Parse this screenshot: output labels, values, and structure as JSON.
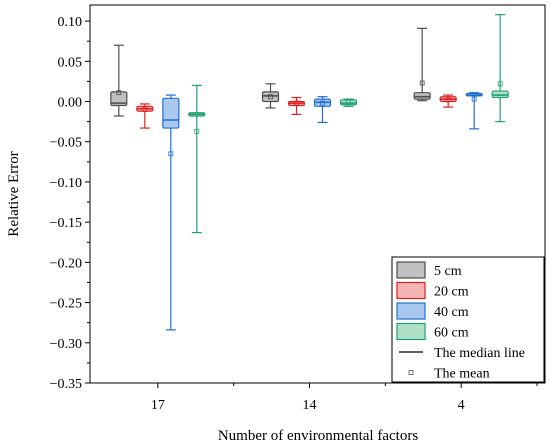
{
  "chart_data": {
    "type": "box",
    "xlabel": "Number of environmental factors",
    "ylabel": "Relative Error",
    "ylim": [
      -0.35,
      0.12
    ],
    "yticks": [
      0.1,
      0.05,
      0.0,
      -0.05,
      -0.1,
      -0.15,
      -0.2,
      -0.25,
      -0.3,
      -0.35
    ],
    "ytick_labels": [
      "0.10",
      "0.05",
      "0.00",
      "−0.05",
      "−0.10",
      "−0.15",
      "−0.20",
      "−0.25",
      "−0.30",
      "−0.35"
    ],
    "categories": [
      "17",
      "14",
      "4"
    ],
    "series": [
      {
        "name": "5   cm",
        "color": "#4d4d4d",
        "fill": "#c0c0c0",
        "boxes": [
          {
            "min": -0.018,
            "q1": -0.005,
            "median": -0.002,
            "q3": 0.012,
            "max": 0.07,
            "mean": 0.011
          },
          {
            "min": -0.008,
            "q1": 0.0,
            "median": 0.007,
            "q3": 0.012,
            "max": 0.022,
            "mean": 0.006
          },
          {
            "min": 0.001,
            "q1": 0.003,
            "median": 0.006,
            "q3": 0.011,
            "max": 0.091,
            "mean": 0.023
          }
        ]
      },
      {
        "name": "20 cm",
        "color": "#e02020",
        "fill": "#f5b5b5",
        "boxes": [
          {
            "min": -0.033,
            "q1": -0.012,
            "median": -0.009,
            "q3": -0.006,
            "max": -0.003,
            "mean": -0.01
          },
          {
            "min": -0.016,
            "q1": -0.005,
            "median": -0.002,
            "q3": 0.0,
            "max": 0.005,
            "mean": -0.002
          },
          {
            "min": -0.007,
            "q1": 0.0,
            "median": 0.003,
            "q3": 0.006,
            "max": 0.008,
            "mean": 0.002
          }
        ]
      },
      {
        "name": "40 cm",
        "color": "#2070d0",
        "fill": "#a8c8f0",
        "boxes": [
          {
            "min": -0.284,
            "q1": -0.033,
            "median": -0.023,
            "q3": 0.004,
            "max": 0.008,
            "mean": -0.065
          },
          {
            "min": -0.026,
            "q1": -0.006,
            "median": -0.001,
            "q3": 0.003,
            "max": 0.006,
            "mean": -0.002
          },
          {
            "min": -0.034,
            "q1": 0.007,
            "median": 0.008,
            "q3": 0.01,
            "max": 0.011,
            "mean": 0.003
          }
        ]
      },
      {
        "name": "60 cm",
        "color": "#20a070",
        "fill": "#b0e0c8",
        "boxes": [
          {
            "min": -0.163,
            "q1": -0.018,
            "median": -0.016,
            "q3": -0.014,
            "max": 0.02,
            "mean": -0.037
          },
          {
            "min": -0.006,
            "q1": -0.004,
            "median": -0.002,
            "q3": 0.002,
            "max": 0.003,
            "mean": -0.001
          },
          {
            "min": -0.025,
            "q1": 0.005,
            "median": 0.008,
            "q3": 0.013,
            "max": 0.108,
            "mean": 0.022
          }
        ]
      }
    ],
    "legend": {
      "position": "bottom-right",
      "entries": [
        "5   cm",
        "20 cm",
        "40 cm",
        "60 cm",
        "The median line",
        "The mean"
      ]
    }
  }
}
